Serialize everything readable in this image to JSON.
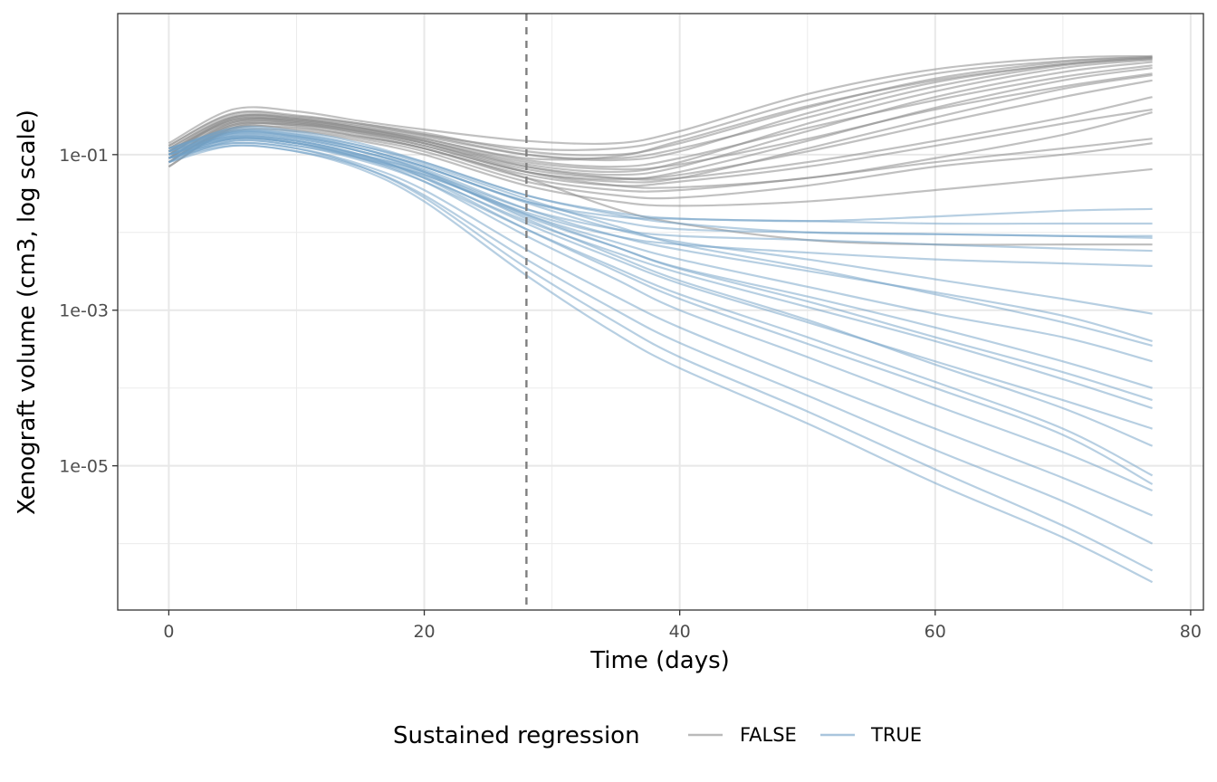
{
  "chart_data": {
    "type": "line",
    "title": "",
    "xlabel": "Time (days)",
    "ylabel": "Xenograft volume (cm3, log scale)",
    "y_scale": "log10",
    "xlim": [
      -4,
      81
    ],
    "ylim": [
      1.4e-07,
      6.5
    ],
    "x_ticks": [
      0,
      20,
      40,
      60,
      80
    ],
    "x_tick_labels": [
      "0",
      "20",
      "40",
      "60",
      "80"
    ],
    "y_ticks": [
      0.1,
      0.001,
      1e-05
    ],
    "y_tick_labels": [
      "1e-01",
      "1e-03",
      "1e-05"
    ],
    "grid": true,
    "vline": {
      "x": 28,
      "style": "dashed",
      "color": "#7f7f7f"
    },
    "legend": {
      "title": "Sustained regression",
      "position": "bottom",
      "items": [
        {
          "label": "FALSE",
          "color": "#8c8c8c"
        },
        {
          "label": "TRUE",
          "color": "#6f9fc6"
        }
      ]
    },
    "x": [
      0,
      5,
      10,
      15,
      20,
      28,
      35,
      40,
      50,
      60,
      70,
      77
    ],
    "series": [
      {
        "group": "FALSE",
        "values": [
          0.09,
          0.26,
          0.28,
          0.22,
          0.16,
          0.09,
          0.095,
          0.15,
          0.42,
          0.9,
          1.45,
          1.75
        ]
      },
      {
        "group": "FALSE",
        "values": [
          0.14,
          0.38,
          0.36,
          0.27,
          0.21,
          0.15,
          0.14,
          0.2,
          0.6,
          1.25,
          1.75,
          1.85
        ]
      },
      {
        "group": "FALSE",
        "values": [
          0.11,
          0.3,
          0.3,
          0.24,
          0.18,
          0.12,
          0.12,
          0.17,
          0.5,
          1.1,
          1.6,
          1.8
        ]
      },
      {
        "group": "FALSE",
        "values": [
          0.07,
          0.22,
          0.24,
          0.19,
          0.13,
          0.06,
          0.048,
          0.06,
          0.15,
          0.4,
          0.9,
          1.3
        ]
      },
      {
        "group": "FALSE",
        "values": [
          0.12,
          0.31,
          0.29,
          0.23,
          0.17,
          0.1,
          0.09,
          0.12,
          0.3,
          0.75,
          1.4,
          1.7
        ]
      },
      {
        "group": "FALSE",
        "values": [
          0.08,
          0.24,
          0.25,
          0.2,
          0.14,
          0.07,
          0.055,
          0.07,
          0.2,
          0.55,
          1.15,
          1.55
        ]
      },
      {
        "group": "FALSE",
        "values": [
          0.1,
          0.28,
          0.27,
          0.21,
          0.15,
          0.075,
          0.06,
          0.08,
          0.25,
          0.65,
          1.3,
          1.65
        ]
      },
      {
        "group": "FALSE",
        "values": [
          0.13,
          0.33,
          0.31,
          0.25,
          0.19,
          0.11,
          0.1,
          0.14,
          0.4,
          0.95,
          1.55,
          1.8
        ]
      },
      {
        "group": "FALSE",
        "values": [
          0.09,
          0.25,
          0.26,
          0.2,
          0.14,
          0.065,
          0.05,
          0.055,
          0.11,
          0.25,
          0.55,
          0.9
        ]
      },
      {
        "group": "FALSE",
        "values": [
          0.1,
          0.29,
          0.28,
          0.22,
          0.16,
          0.085,
          0.07,
          0.09,
          0.22,
          0.5,
          1.0,
          1.4
        ]
      },
      {
        "group": "FALSE",
        "values": [
          0.08,
          0.23,
          0.24,
          0.18,
          0.12,
          0.055,
          0.04,
          0.045,
          0.07,
          0.13,
          0.25,
          0.38
        ]
      },
      {
        "group": "FALSE",
        "values": [
          0.11,
          0.27,
          0.27,
          0.21,
          0.15,
          0.08,
          0.065,
          0.075,
          0.16,
          0.38,
          0.75,
          1.1
        ]
      },
      {
        "group": "FALSE",
        "values": [
          0.07,
          0.21,
          0.22,
          0.17,
          0.12,
          0.05,
          0.035,
          0.035,
          0.05,
          0.08,
          0.12,
          0.16
        ]
      },
      {
        "group": "FALSE",
        "values": [
          0.12,
          0.3,
          0.29,
          0.22,
          0.15,
          0.07,
          0.05,
          0.05,
          0.08,
          0.15,
          0.3,
          0.55
        ]
      },
      {
        "group": "FALSE",
        "values": [
          0.09,
          0.2,
          0.2,
          0.15,
          0.1,
          0.04,
          0.025,
          0.022,
          0.025,
          0.035,
          0.05,
          0.065
        ]
      },
      {
        "group": "FALSE",
        "values": [
          0.1,
          0.26,
          0.25,
          0.19,
          0.13,
          0.06,
          0.045,
          0.05,
          0.12,
          0.3,
          0.7,
          1.05
        ]
      },
      {
        "group": "FALSE",
        "values": [
          0.08,
          0.22,
          0.21,
          0.16,
          0.11,
          0.045,
          0.03,
          0.028,
          0.04,
          0.07,
          0.1,
          0.14
        ]
      },
      {
        "group": "FALSE",
        "values": [
          0.13,
          0.34,
          0.32,
          0.25,
          0.18,
          0.1,
          0.085,
          0.11,
          0.34,
          0.85,
          1.45,
          1.75
        ]
      },
      {
        "group": "FALSE",
        "values": [
          0.11,
          0.28,
          0.26,
          0.2,
          0.14,
          0.06,
          0.04,
          0.038,
          0.05,
          0.09,
          0.18,
          0.35
        ]
      },
      {
        "group": "FALSE",
        "values": [
          0.09,
          0.24,
          0.23,
          0.17,
          0.12,
          0.05,
          0.02,
          0.013,
          0.008,
          0.007,
          0.007,
          0.007
        ]
      },
      {
        "group": "TRUE",
        "values": [
          0.1,
          0.2,
          0.18,
          0.12,
          0.07,
          0.025,
          0.016,
          0.015,
          0.014,
          0.016,
          0.019,
          0.02
        ]
      },
      {
        "group": "TRUE",
        "values": [
          0.11,
          0.22,
          0.2,
          0.14,
          0.08,
          0.03,
          0.018,
          0.015,
          0.014,
          0.013,
          0.013,
          0.013
        ]
      },
      {
        "group": "TRUE",
        "values": [
          0.08,
          0.19,
          0.17,
          0.12,
          0.07,
          0.025,
          0.014,
          0.011,
          0.01,
          0.0095,
          0.009,
          0.009
        ]
      },
      {
        "group": "TRUE",
        "values": [
          0.12,
          0.21,
          0.19,
          0.13,
          0.08,
          0.03,
          0.017,
          0.013,
          0.01,
          0.0095,
          0.009,
          0.0085
        ]
      },
      {
        "group": "TRUE",
        "values": [
          0.1,
          0.17,
          0.15,
          0.1,
          0.06,
          0.02,
          0.011,
          0.009,
          0.008,
          0.007,
          0.0062,
          0.0058
        ]
      },
      {
        "group": "TRUE",
        "values": [
          0.09,
          0.16,
          0.14,
          0.09,
          0.055,
          0.018,
          0.009,
          0.007,
          0.0055,
          0.0045,
          0.004,
          0.0037
        ]
      },
      {
        "group": "TRUE",
        "values": [
          0.11,
          0.19,
          0.17,
          0.12,
          0.07,
          0.024,
          0.011,
          0.0075,
          0.0045,
          0.0025,
          0.0014,
          0.0009
        ]
      },
      {
        "group": "TRUE",
        "values": [
          0.1,
          0.18,
          0.16,
          0.11,
          0.065,
          0.02,
          0.009,
          0.006,
          0.0032,
          0.0017,
          0.00085,
          0.0004
        ]
      },
      {
        "group": "TRUE",
        "values": [
          0.12,
          0.2,
          0.18,
          0.13,
          0.075,
          0.027,
          0.012,
          0.007,
          0.0035,
          0.0016,
          0.0007,
          0.00035
        ]
      },
      {
        "group": "TRUE",
        "values": [
          0.09,
          0.16,
          0.14,
          0.095,
          0.055,
          0.017,
          0.0075,
          0.0045,
          0.002,
          0.0009,
          0.00045,
          0.00022
        ]
      },
      {
        "group": "TRUE",
        "values": [
          0.1,
          0.17,
          0.15,
          0.1,
          0.058,
          0.016,
          0.0065,
          0.0035,
          0.0015,
          0.0006,
          0.00022,
          0.0001
        ]
      },
      {
        "group": "TRUE",
        "values": [
          0.11,
          0.18,
          0.16,
          0.11,
          0.062,
          0.017,
          0.0065,
          0.0034,
          0.0013,
          0.00045,
          0.00016,
          7e-05
        ]
      },
      {
        "group": "TRUE",
        "values": [
          0.08,
          0.15,
          0.13,
          0.09,
          0.05,
          0.014,
          0.0055,
          0.003,
          0.0011,
          0.0004,
          0.00013,
          5.5e-05
        ]
      },
      {
        "group": "TRUE",
        "values": [
          0.1,
          0.16,
          0.14,
          0.095,
          0.052,
          0.013,
          0.0045,
          0.0022,
          0.0007,
          0.00022,
          7e-05,
          3e-05
        ]
      },
      {
        "group": "TRUE",
        "values": [
          0.12,
          0.19,
          0.17,
          0.11,
          0.06,
          0.015,
          0.005,
          0.0024,
          0.00075,
          0.0002,
          5.5e-05,
          1.8e-05
        ]
      },
      {
        "group": "TRUE",
        "values": [
          0.09,
          0.15,
          0.13,
          0.085,
          0.045,
          0.011,
          0.0035,
          0.0016,
          0.00045,
          0.00012,
          3e-05,
          7.5e-06
        ]
      },
      {
        "group": "TRUE",
        "values": [
          0.11,
          0.17,
          0.15,
          0.1,
          0.05,
          0.011,
          0.0032,
          0.0014,
          0.00037,
          0.0001,
          2.5e-05,
          5.8e-06
        ]
      },
      {
        "group": "TRUE",
        "values": [
          0.1,
          0.16,
          0.14,
          0.09,
          0.045,
          0.009,
          0.0025,
          0.001,
          0.00025,
          6e-05,
          1.5e-05,
          4.8e-06
        ]
      },
      {
        "group": "TRUE",
        "values": [
          0.09,
          0.14,
          0.12,
          0.075,
          0.035,
          0.006,
          0.0015,
          0.0006,
          0.00013,
          3e-05,
          7e-06,
          2.3e-06
        ]
      },
      {
        "group": "TRUE",
        "values": [
          0.08,
          0.13,
          0.11,
          0.07,
          0.03,
          0.0045,
          0.001,
          0.00038,
          8e-05,
          1.6e-05,
          3.5e-06,
          1e-06
        ]
      },
      {
        "group": "TRUE",
        "values": [
          0.1,
          0.14,
          0.12,
          0.07,
          0.028,
          0.0035,
          0.0007,
          0.00025,
          5e-05,
          9e-06,
          1.7e-06,
          4.5e-07
        ]
      },
      {
        "group": "TRUE",
        "values": [
          0.09,
          0.13,
          0.11,
          0.065,
          0.025,
          0.0028,
          0.0005,
          0.00018,
          3.5e-05,
          6e-06,
          1.2e-06,
          3.2e-07
        ]
      }
    ]
  }
}
